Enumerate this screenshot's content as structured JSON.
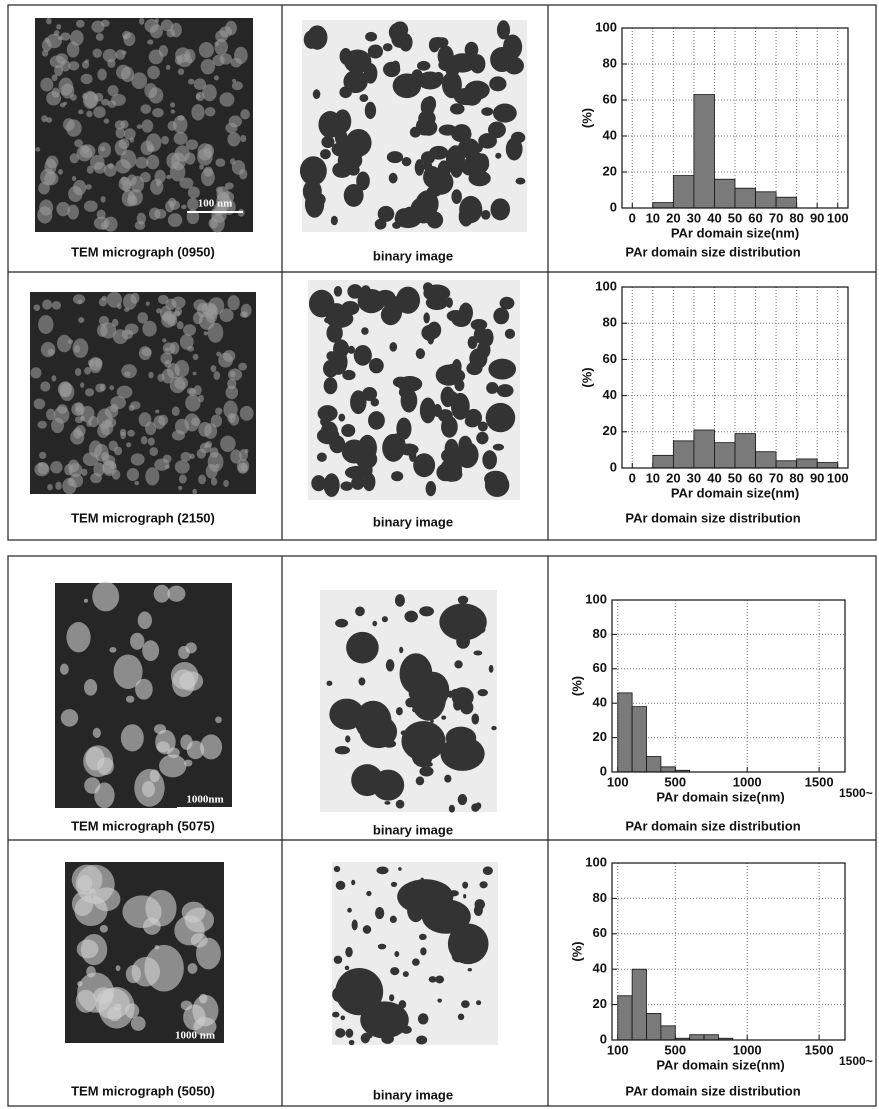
{
  "rows": [
    {
      "micrograph_caption": "TEM micrograph (0950)",
      "binary_caption": "binary image",
      "chart_caption": "PAr domain size distribution",
      "scale_label": "100 nm"
    },
    {
      "micrograph_caption": "TEM micrograph (2150)",
      "binary_caption": "binary image",
      "chart_caption": "PAr domain size distribution"
    },
    {
      "micrograph_caption": "TEM micrograph (5075)",
      "binary_caption": "binary image",
      "chart_caption": "PAr domain size distribution",
      "scale_label": "1000nm"
    },
    {
      "micrograph_caption": "TEM micrograph (5050)",
      "binary_caption": "binary image",
      "chart_caption": "PAr domain size distribution",
      "scale_label": "1000 nm"
    }
  ],
  "chart_data": [
    {
      "type": "histogram",
      "ylabel": "(%)",
      "xlabel": "PAr domain size(nm)",
      "bins": [
        10,
        20,
        30,
        40,
        50,
        60,
        70,
        80
      ],
      "values": [
        3,
        18,
        63,
        16,
        11,
        9,
        6
      ],
      "xlim": [
        -5,
        105
      ],
      "xticks": [
        0,
        10,
        20,
        30,
        40,
        50,
        60,
        70,
        80,
        90,
        100
      ],
      "ylim": [
        0,
        100
      ],
      "yticks": [
        0,
        20,
        40,
        60,
        80,
        100
      ],
      "grid": true,
      "color": "#7a7a7a"
    },
    {
      "type": "histogram",
      "ylabel": "(%)",
      "xlabel": "PAr domain size(nm)",
      "bins": [
        10,
        20,
        30,
        40,
        50,
        60,
        70,
        80,
        90,
        100
      ],
      "values": [
        7,
        15,
        21,
        14,
        19,
        9,
        4,
        5,
        3
      ],
      "xlim": [
        -5,
        105
      ],
      "xticks": [
        0,
        10,
        20,
        30,
        40,
        50,
        60,
        70,
        80,
        90,
        100
      ],
      "ylim": [
        0,
        100
      ],
      "yticks": [
        0,
        20,
        40,
        60,
        80,
        100
      ],
      "grid": true,
      "color": "#7a7a7a"
    },
    {
      "type": "histogram",
      "ylabel": "(%)",
      "xlabel": "PAr domain size(nm)",
      "annotation": "1500~",
      "bins": [
        100,
        200,
        300,
        400,
        500,
        600
      ],
      "values": [
        46,
        38,
        9,
        3,
        1
      ],
      "xlim": [
        60,
        1680
      ],
      "xticks": [
        100,
        500,
        1000,
        1500
      ],
      "ylim": [
        0,
        100
      ],
      "yticks": [
        0,
        20,
        40,
        60,
        80,
        100
      ],
      "grid": true,
      "color": "#7a7a7a"
    },
    {
      "type": "histogram",
      "ylabel": "(%)",
      "xlabel": "PAr domain size(nm)",
      "annotation": "1500~",
      "bins": [
        100,
        200,
        300,
        400,
        500,
        600,
        700,
        800,
        900
      ],
      "values": [
        25,
        40,
        15,
        8,
        1,
        3,
        3,
        1
      ],
      "xlim": [
        60,
        1680
      ],
      "xticks": [
        100,
        500,
        1000,
        1500
      ],
      "ylim": [
        0,
        100
      ],
      "yticks": [
        0,
        20,
        40,
        60,
        80,
        100
      ],
      "grid": true,
      "color": "#7a7a7a"
    }
  ]
}
